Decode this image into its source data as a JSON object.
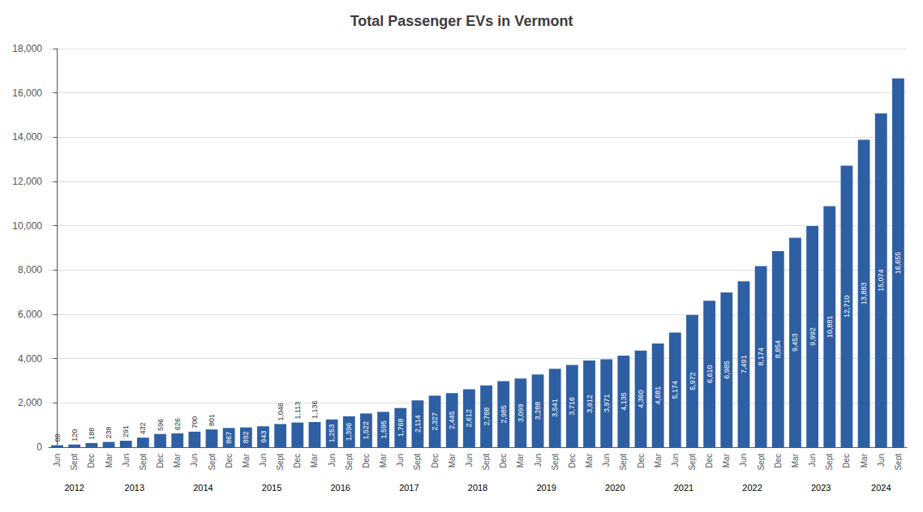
{
  "chart_data": {
    "type": "bar",
    "title": "Total Passenger EVs in Vermont",
    "categories": [
      "Jun",
      "Sept",
      "Dec",
      "Mar",
      "Jun",
      "Sept",
      "Dec",
      "Mar",
      "Jun",
      "Sept",
      "Dec",
      "Mar",
      "Jun",
      "Sept",
      "Dec",
      "Mar",
      "Jun",
      "Sept",
      "Dec",
      "Mar",
      "Jun",
      "Sept",
      "Dec",
      "Mar",
      "Jun",
      "Sept",
      "Dec",
      "Mar",
      "Jun",
      "Sept",
      "Dec",
      "Mar",
      "Jun",
      "Sept",
      "Dec",
      "Mar",
      "Jun",
      "Sept",
      "Dec",
      "Mar",
      "Jun",
      "Sept",
      "Dec",
      "Mar",
      "Jun",
      "Sept",
      "Dec",
      "Mar",
      "Jun",
      "Sept"
    ],
    "years": [
      "2012",
      "2012",
      "2012",
      "2013",
      "2013",
      "2013",
      "2013",
      "2014",
      "2014",
      "2014",
      "2014",
      "2015",
      "2015",
      "2015",
      "2015",
      "2016",
      "2016",
      "2016",
      "2016",
      "2017",
      "2017",
      "2017",
      "2017",
      "2018",
      "2018",
      "2018",
      "2018",
      "2019",
      "2019",
      "2019",
      "2019",
      "2020",
      "2020",
      "2020",
      "2020",
      "2021",
      "2021",
      "2021",
      "2021",
      "2022",
      "2022",
      "2022",
      "2022",
      "2023",
      "2023",
      "2023",
      "2023",
      "2024",
      "2024",
      "2024"
    ],
    "values": [
      88,
      120,
      188,
      238,
      291,
      432,
      596,
      626,
      700,
      801,
      867,
      892,
      943,
      1046,
      1113,
      1136,
      1253,
      1396,
      1522,
      1595,
      1768,
      2114,
      2327,
      2445,
      2612,
      2788,
      2985,
      3099,
      3288,
      3541,
      3716,
      3912,
      3971,
      4135,
      4360,
      4681,
      5174,
      5972,
      6610,
      6985,
      7491,
      8174,
      8854,
      9453,
      9992,
      10881,
      12710,
      13883,
      15074,
      16655
    ],
    "value_labels": [
      "88",
      "120",
      "188",
      "238",
      "291",
      "432",
      "596",
      "626",
      "700",
      "801",
      "867",
      "892",
      "943",
      "1,046",
      "1,113",
      "1,136",
      "1,253",
      "1,396",
      "1,522",
      "1,595",
      "1,768",
      "2,114",
      "2,327",
      "2,445",
      "2,612",
      "2,788",
      "2,985",
      "3,099",
      "3,288",
      "3,541",
      "3,716",
      "3,912",
      "3,971",
      "4,135",
      "4,360",
      "4,681",
      "5,174",
      "5,972",
      "6,610",
      "6,985",
      "7,491",
      "8,174",
      "8,854",
      "9,453",
      "9,992",
      "10,881",
      "12,710",
      "13,883",
      "15,074",
      "16,655"
    ],
    "data_labels": true,
    "color": "#2E5FA3",
    "ylim": [
      0,
      18000
    ],
    "yticks": [
      0,
      {
        "value": 2000,
        "label": "2,000"
      },
      {
        "value": 4000,
        "label": "4,000"
      },
      {
        "value": 6000,
        "label": "6,000"
      },
      {
        "value": 8000,
        "label": "8,000"
      },
      {
        "value": 10000,
        "label": "10,000"
      },
      {
        "value": 12000,
        "label": "12,000"
      },
      {
        "value": 14000,
        "label": "14,000"
      },
      {
        "value": 16000,
        "label": "16,000"
      },
      {
        "value": 18000,
        "label": "18,000"
      }
    ],
    "grid": true
  }
}
